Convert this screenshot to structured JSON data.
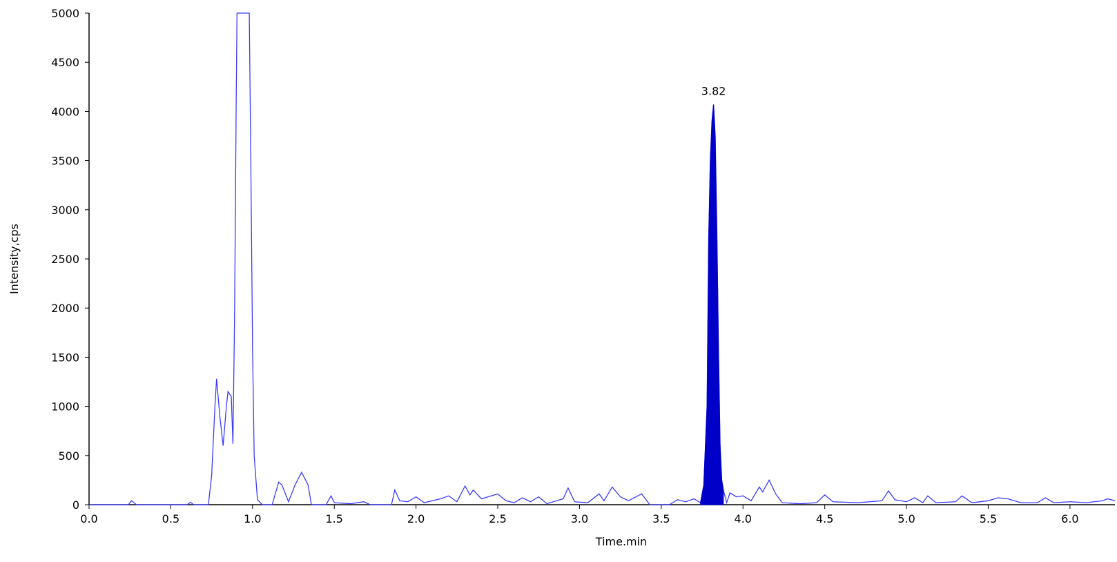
{
  "chart_data": {
    "type": "line",
    "xlabel": "Time.min",
    "ylabel": "Intensity,cps",
    "xlim": [
      0,
      6.275
    ],
    "ylim": [
      0,
      5000
    ],
    "xticks": [
      {
        "value": 0,
        "label": "0.0"
      },
      {
        "value": 0.5,
        "label": "0.5"
      },
      {
        "value": 1,
        "label": "1.0"
      },
      {
        "value": 1.5,
        "label": "1.5"
      },
      {
        "value": 2,
        "label": "2.0"
      },
      {
        "value": 2.5,
        "label": "2.5"
      },
      {
        "value": 3,
        "label": "3.0"
      },
      {
        "value": 3.5,
        "label": "3.5"
      },
      {
        "value": 4,
        "label": "4.0"
      },
      {
        "value": 4.5,
        "label": "4.5"
      },
      {
        "value": 5,
        "label": "5.0"
      },
      {
        "value": 5.5,
        "label": "5.5"
      },
      {
        "value": 6,
        "label": "6.0"
      }
    ],
    "yticks": [
      0,
      500,
      1000,
      1500,
      2000,
      2500,
      3000,
      3500,
      4000,
      4500,
      5000
    ],
    "series": [
      {
        "color": "#3a3aff",
        "fill": false,
        "x": [
          0.0,
          0.24,
          0.26,
          0.29,
          0.6,
          0.62,
          0.64,
          0.73,
          0.75,
          0.77,
          0.78,
          0.8,
          0.82,
          0.84,
          0.85,
          0.87,
          0.88,
          0.89,
          0.9,
          0.905,
          0.98,
          0.99,
          1.0,
          1.01,
          1.03,
          1.06,
          1.12,
          1.16,
          1.18,
          1.22,
          1.26,
          1.3,
          1.34,
          1.36,
          1.45,
          1.48,
          1.5,
          1.6,
          1.68,
          1.72,
          1.85,
          1.87,
          1.9,
          1.95,
          2.0,
          2.05,
          2.15,
          2.2,
          2.25,
          2.3,
          2.33,
          2.35,
          2.4,
          2.5,
          2.55,
          2.6,
          2.65,
          2.7,
          2.75,
          2.8,
          2.9,
          2.93,
          2.97,
          3.05,
          3.12,
          3.15,
          3.2,
          3.25,
          3.3,
          3.38,
          3.43,
          3.55,
          3.6,
          3.65,
          3.7,
          3.74,
          3.76,
          3.78,
          3.79,
          3.8,
          3.81,
          3.82,
          3.83,
          3.84,
          3.85,
          3.86,
          3.87,
          3.88,
          3.9,
          3.92,
          3.96,
          4.0,
          4.05,
          4.1,
          4.12,
          4.16,
          4.2,
          4.24,
          4.35,
          4.45,
          4.5,
          4.55,
          4.7,
          4.85,
          4.89,
          4.93,
          5.0,
          5.05,
          5.1,
          5.13,
          5.18,
          5.3,
          5.34,
          5.4,
          5.5,
          5.56,
          5.62,
          5.7,
          5.8,
          5.85,
          5.9,
          6.0,
          6.1,
          6.2,
          6.23,
          6.275
        ],
        "values": [
          0,
          0,
          40,
          0,
          0,
          25,
          0,
          0,
          300,
          1000,
          1280,
          900,
          600,
          1000,
          1150,
          1100,
          620,
          1900,
          4100,
          5000,
          5000,
          3400,
          1600,
          500,
          50,
          0,
          0,
          230,
          200,
          30,
          200,
          330,
          200,
          0,
          0,
          90,
          20,
          10,
          30,
          0,
          0,
          150,
          40,
          30,
          80,
          20,
          60,
          90,
          30,
          190,
          100,
          150,
          60,
          110,
          40,
          20,
          70,
          30,
          80,
          10,
          60,
          170,
          30,
          20,
          110,
          40,
          180,
          80,
          40,
          110,
          0,
          0,
          50,
          30,
          60,
          20,
          200,
          1000,
          2700,
          3500,
          3900,
          4070,
          3750,
          2800,
          1600,
          600,
          250,
          150,
          20,
          120,
          80,
          90,
          40,
          180,
          130,
          250,
          110,
          20,
          10,
          20,
          100,
          30,
          20,
          40,
          140,
          50,
          30,
          70,
          20,
          90,
          20,
          30,
          90,
          20,
          40,
          70,
          60,
          20,
          20,
          70,
          20,
          30,
          20,
          40,
          60,
          40
        ]
      },
      {
        "color": "#0000c8",
        "fill": true,
        "x": [
          3.74,
          3.76,
          3.78,
          3.79,
          3.8,
          3.81,
          3.82,
          3.83,
          3.84,
          3.85,
          3.86,
          3.87,
          3.88
        ],
        "values": [
          20,
          200,
          1000,
          2700,
          3500,
          3900,
          4070,
          3750,
          2800,
          1600,
          600,
          250,
          150
        ]
      }
    ],
    "annotations": [
      {
        "text": "3.82",
        "x": 3.82,
        "y": 4070
      }
    ]
  }
}
